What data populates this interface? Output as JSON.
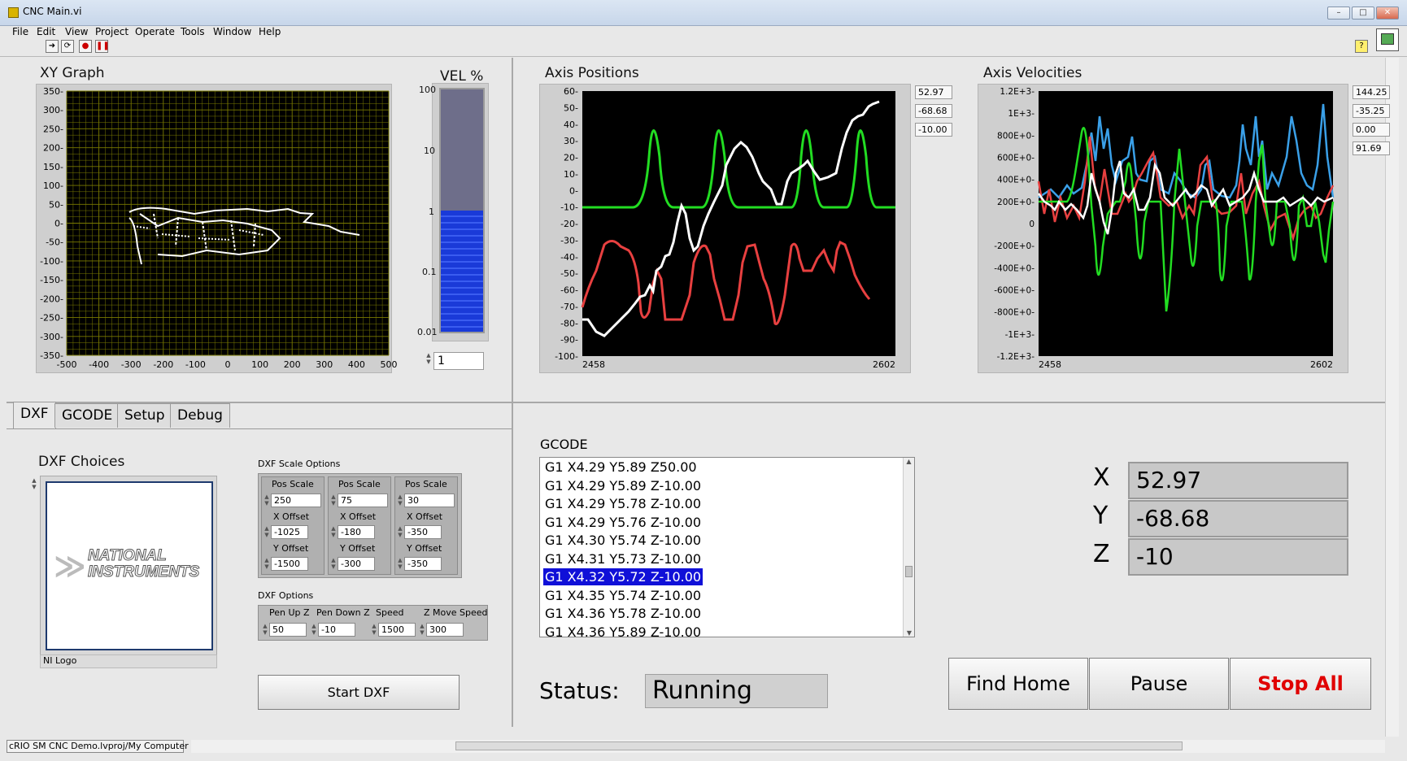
{
  "window": {
    "title": "CNC Main.vi"
  },
  "menu": [
    "File",
    "Edit",
    "View",
    "Project",
    "Operate",
    "Tools",
    "Window",
    "Help"
  ],
  "xy_graph": {
    "title": "XY Graph",
    "y_ticks": [
      "350",
      "300",
      "250",
      "200",
      "150",
      "100",
      "50",
      "0",
      "-50",
      "-100",
      "-150",
      "-200",
      "-250",
      "-300",
      "-350"
    ],
    "x_ticks": [
      "-500",
      "-400",
      "-300",
      "-200",
      "-100",
      "0",
      "100",
      "200",
      "300",
      "400",
      "500"
    ]
  },
  "vel": {
    "title": "VEL %",
    "ticks": [
      "100",
      "10",
      "1",
      "0.1",
      "0.01"
    ],
    "value": "1",
    "fill_level": 1
  },
  "axis_positions": {
    "title": "Axis Positions",
    "y_ticks": [
      "60",
      "50",
      "40",
      "30",
      "20",
      "10",
      "0",
      "-10",
      "-20",
      "-30",
      "-40",
      "-50",
      "-60",
      "-70",
      "-80",
      "-90",
      "-100"
    ],
    "x_ticks": [
      "2458",
      "2602"
    ],
    "legend_values": [
      "52.97",
      "-68.68",
      "-10.00"
    ]
  },
  "axis_velocities": {
    "title": "Axis Velocities",
    "y_ticks": [
      "1.2E+3-",
      "1E+3-",
      "800E+0-",
      "600E+0-",
      "400E+0-",
      "200E+0-",
      "0",
      "-200E+0-",
      "-400E+0-",
      "-600E+0-",
      "-800E+0-",
      "-1E+3-",
      "-1.2E+3-"
    ],
    "x_ticks": [
      "2458",
      "2602"
    ],
    "legend_values": [
      "144.25",
      "-35.25",
      "0.00",
      "91.69"
    ]
  },
  "tabs": [
    "DXF",
    "GCODE",
    "Setup",
    "Debug"
  ],
  "dxf": {
    "choices_label": "DXF Choices",
    "logo_line1": "NATIONAL",
    "logo_line2": "INSTRUMENTS",
    "logo_caption": "NI Logo",
    "scale_options_label": "DXF Scale Options",
    "scale_columns": [
      {
        "header": "Pos Scale",
        "pos_scale": "250",
        "x_label": "X Offset",
        "x_offset": "-1025",
        "y_label": "Y Offset",
        "y_offset": "-1500"
      },
      {
        "header": "Pos Scale",
        "pos_scale": "75",
        "x_label": "X Offset",
        "x_offset": "-180",
        "y_label": "Y Offset",
        "y_offset": "-300"
      },
      {
        "header": "Pos Scale",
        "pos_scale": "30",
        "x_label": "X Offset",
        "x_offset": "-350",
        "y_label": "Y Offset",
        "y_offset": "-350"
      }
    ],
    "options_label": "DXF Options",
    "options": [
      {
        "label": "Pen Up Z",
        "value": "50"
      },
      {
        "label": "Pen Down Z",
        "value": "-10"
      },
      {
        "label": "Speed",
        "value": "1500"
      },
      {
        "label": "Z Move Speed",
        "value": "300"
      }
    ],
    "start_button": "Start DXF"
  },
  "gcode": {
    "label": "GCODE",
    "lines": [
      "G1 X4.29 Y5.89 Z50.00",
      "G1 X4.29 Y5.89 Z-10.00",
      "G1 X4.29 Y5.78 Z-10.00",
      "G1 X4.29 Y5.76 Z-10.00",
      "G1 X4.30 Y5.74 Z-10.00",
      "G1 X4.31 Y5.73 Z-10.00",
      "G1 X4.32 Y5.72 Z-10.00",
      "G1 X4.35 Y5.74 Z-10.00",
      "G1 X4.36 Y5.78 Z-10.00",
      "G1 X4.36 Y5.89 Z-10.00"
    ],
    "selected_index": 6
  },
  "status": {
    "label": "Status:",
    "value": "Running"
  },
  "readouts": [
    {
      "axis": "X",
      "value": "52.97"
    },
    {
      "axis": "Y",
      "value": "-68.68"
    },
    {
      "axis": "Z",
      "value": "-10"
    }
  ],
  "buttons": {
    "find_home": "Find Home",
    "pause": "Pause",
    "stop_all": "Stop All"
  },
  "statusbar": {
    "project": "cRIO SM CNC Demo.lvproj/My Computer"
  },
  "colors": {
    "green": "#22dd22",
    "red": "#e84040",
    "white": "#ffffff",
    "blue": "#3aa0e8",
    "grid": "#a8a800",
    "selection": "#1010d8",
    "stop_text": "#e00000"
  }
}
